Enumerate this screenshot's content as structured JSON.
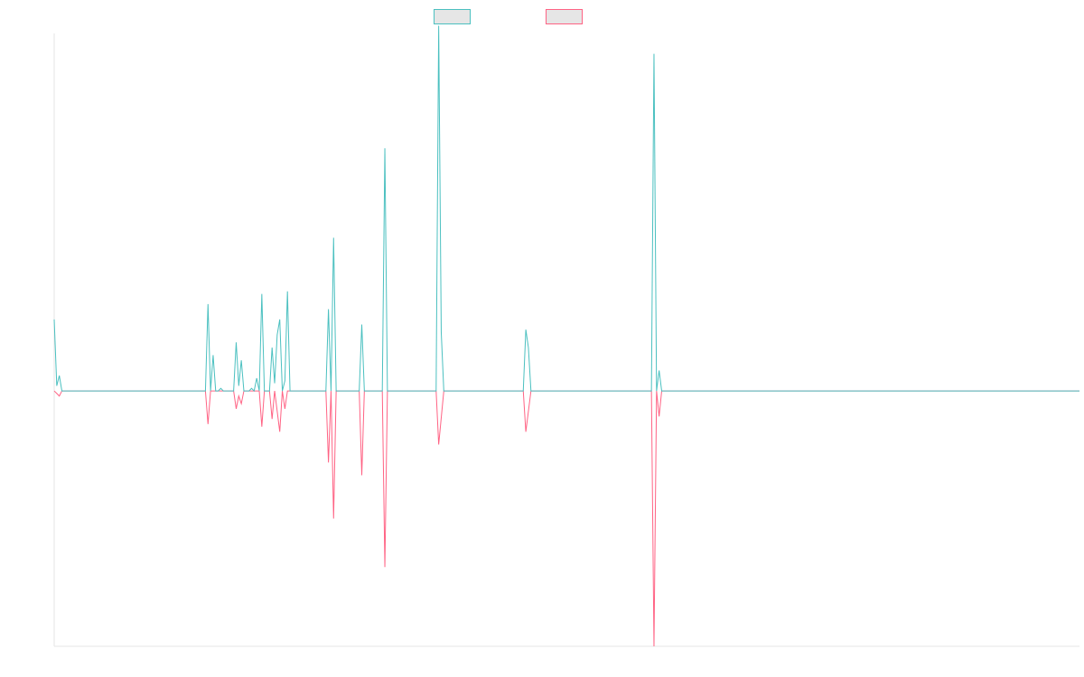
{
  "chart_data": {
    "type": "line",
    "title": "",
    "xlabel": "",
    "ylabel": "",
    "xlim": [
      0,
      200
    ],
    "ylim": [
      -1,
      1.4
    ],
    "grid": false,
    "legend_placement": "top-center",
    "series": [
      {
        "color": "#4bc0c0",
        "legend_fill": "#e6e6e6",
        "points": [
          [
            0,
            0.28
          ],
          [
            0.5,
            0.02
          ],
          [
            1,
            0.06
          ],
          [
            1.5,
            0
          ],
          [
            29.5,
            0
          ],
          [
            30,
            0.34
          ],
          [
            30.5,
            0
          ],
          [
            31,
            0.14
          ],
          [
            31.5,
            0
          ],
          [
            32,
            0
          ],
          [
            32.5,
            0.01
          ],
          [
            33,
            0
          ],
          [
            35,
            0
          ],
          [
            35.5,
            0.19
          ],
          [
            36,
            0.02
          ],
          [
            36.5,
            0.12
          ],
          [
            37,
            0
          ],
          [
            38,
            0
          ],
          [
            38.5,
            0.01
          ],
          [
            39,
            0
          ],
          [
            39.5,
            0.05
          ],
          [
            40,
            0
          ],
          [
            40.5,
            0.38
          ],
          [
            41,
            0
          ],
          [
            42,
            0
          ],
          [
            42.5,
            0.17
          ],
          [
            43,
            0.03
          ],
          [
            43.5,
            0.22
          ],
          [
            44,
            0.28
          ],
          [
            44.5,
            0
          ],
          [
            45,
            0.04
          ],
          [
            45.5,
            0.39
          ],
          [
            46,
            0
          ],
          [
            53,
            0
          ],
          [
            53.5,
            0.32
          ],
          [
            54,
            0
          ],
          [
            54.5,
            0.6
          ],
          [
            55,
            0
          ],
          [
            59.5,
            0
          ],
          [
            60,
            0.26
          ],
          [
            60.5,
            0
          ],
          [
            64,
            0
          ],
          [
            64.5,
            0.95
          ],
          [
            65,
            0
          ],
          [
            74.5,
            0
          ],
          [
            75,
            1.43
          ],
          [
            75.5,
            0.23
          ],
          [
            76,
            0
          ],
          [
            91.5,
            0
          ],
          [
            92,
            0.24
          ],
          [
            92.5,
            0.17
          ],
          [
            93,
            0
          ],
          [
            116.5,
            0
          ],
          [
            117,
            1.32
          ],
          [
            117.5,
            0
          ],
          [
            118,
            0.08
          ],
          [
            118.5,
            0
          ],
          [
            200,
            0
          ]
        ]
      },
      {
        "color": "#ff6384",
        "legend_fill": "#e6e6e6",
        "points": [
          [
            0,
            0
          ],
          [
            0.5,
            -0.01
          ],
          [
            1,
            -0.02
          ],
          [
            1.5,
            0
          ],
          [
            29.5,
            0
          ],
          [
            30,
            -0.13
          ],
          [
            30.5,
            0
          ],
          [
            35,
            0
          ],
          [
            35.5,
            -0.07
          ],
          [
            36,
            -0.02
          ],
          [
            36.5,
            -0.05
          ],
          [
            37,
            0
          ],
          [
            40,
            0
          ],
          [
            40.5,
            -0.14
          ],
          [
            41,
            0
          ],
          [
            42,
            0
          ],
          [
            42.5,
            -0.11
          ],
          [
            43,
            0
          ],
          [
            44,
            -0.16
          ],
          [
            44.5,
            0
          ],
          [
            45,
            -0.07
          ],
          [
            45.5,
            0
          ],
          [
            53,
            0
          ],
          [
            53.5,
            -0.28
          ],
          [
            54,
            0
          ],
          [
            54.5,
            -0.5
          ],
          [
            55,
            0
          ],
          [
            59.5,
            0
          ],
          [
            60,
            -0.33
          ],
          [
            60.5,
            0
          ],
          [
            64,
            0
          ],
          [
            64.5,
            -0.69
          ],
          [
            65,
            0
          ],
          [
            74.5,
            0
          ],
          [
            75,
            -0.21
          ],
          [
            76,
            0
          ],
          [
            91.5,
            0
          ],
          [
            92,
            -0.16
          ],
          [
            93,
            0
          ],
          [
            116.5,
            0
          ],
          [
            117,
            -1.0
          ],
          [
            117.5,
            0
          ],
          [
            118,
            -0.1
          ],
          [
            118.5,
            0
          ],
          [
            200,
            0
          ]
        ]
      }
    ]
  }
}
